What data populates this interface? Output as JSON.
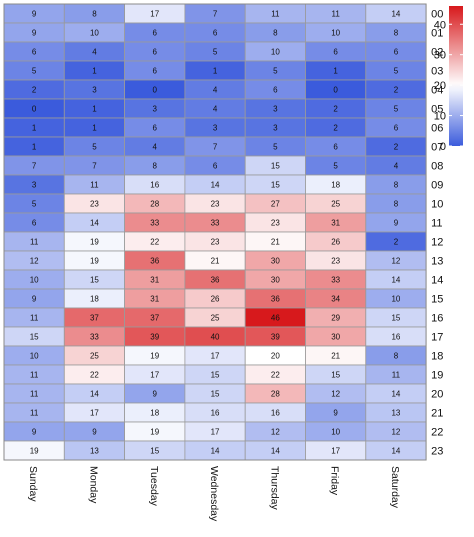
{
  "chart_data": {
    "type": "heatmap",
    "title": "",
    "xlabel": "",
    "ylabel": "",
    "x_categories": [
      "Sunday",
      "Monday",
      "Tuesday",
      "Wednesday",
      "Thursday",
      "Friday",
      "Saturday"
    ],
    "y_categories": [
      "00",
      "01",
      "02",
      "03",
      "04",
      "05",
      "06",
      "07",
      "08",
      "09",
      "10",
      "11",
      "12",
      "13",
      "14",
      "15",
      "16",
      "17",
      "18",
      "19",
      "20",
      "21",
      "22",
      "23"
    ],
    "values": [
      [
        9,
        8,
        17,
        7,
        11,
        11,
        14
      ],
      [
        9,
        10,
        6,
        6,
        8,
        10,
        8
      ],
      [
        6,
        4,
        6,
        5,
        10,
        6,
        6
      ],
      [
        5,
        1,
        6,
        1,
        5,
        1,
        5
      ],
      [
        2,
        3,
        0,
        4,
        6,
        0,
        2
      ],
      [
        0,
        1,
        3,
        4,
        3,
        2,
        5
      ],
      [
        1,
        1,
        6,
        3,
        3,
        2,
        6
      ],
      [
        1,
        5,
        4,
        7,
        5,
        6,
        2
      ],
      [
        7,
        7,
        8,
        6,
        15,
        5,
        4
      ],
      [
        3,
        11,
        16,
        14,
        15,
        18,
        8
      ],
      [
        5,
        23,
        28,
        23,
        27,
        25,
        8
      ],
      [
        6,
        14,
        33,
        33,
        23,
        31,
        9
      ],
      [
        11,
        19,
        22,
        23,
        21,
        26,
        2
      ],
      [
        12,
        19,
        36,
        21,
        30,
        23,
        12
      ],
      [
        10,
        15,
        31,
        36,
        30,
        33,
        14
      ],
      [
        9,
        18,
        31,
        26,
        36,
        34,
        10
      ],
      [
        11,
        37,
        37,
        25,
        46,
        29,
        15
      ],
      [
        15,
        33,
        39,
        40,
        39,
        30,
        16
      ],
      [
        10,
        25,
        19,
        17,
        20,
        21,
        8
      ],
      [
        11,
        22,
        17,
        15,
        22,
        15,
        11
      ],
      [
        11,
        14,
        9,
        15,
        28,
        12,
        14
      ],
      [
        11,
        17,
        18,
        16,
        16,
        9,
        13
      ],
      [
        9,
        9,
        19,
        17,
        12,
        10,
        12
      ],
      [
        19,
        13,
        15,
        14,
        14,
        17,
        14
      ]
    ],
    "colorbar": {
      "min": 0,
      "max": 46,
      "ticks": [
        0,
        10,
        20,
        30,
        40
      ],
      "low_color": "#3b5bdc",
      "mid_color": "#ffffff",
      "high_color": "#d7191c",
      "mid_value": 20
    },
    "grid": true,
    "legend_position": "right"
  }
}
